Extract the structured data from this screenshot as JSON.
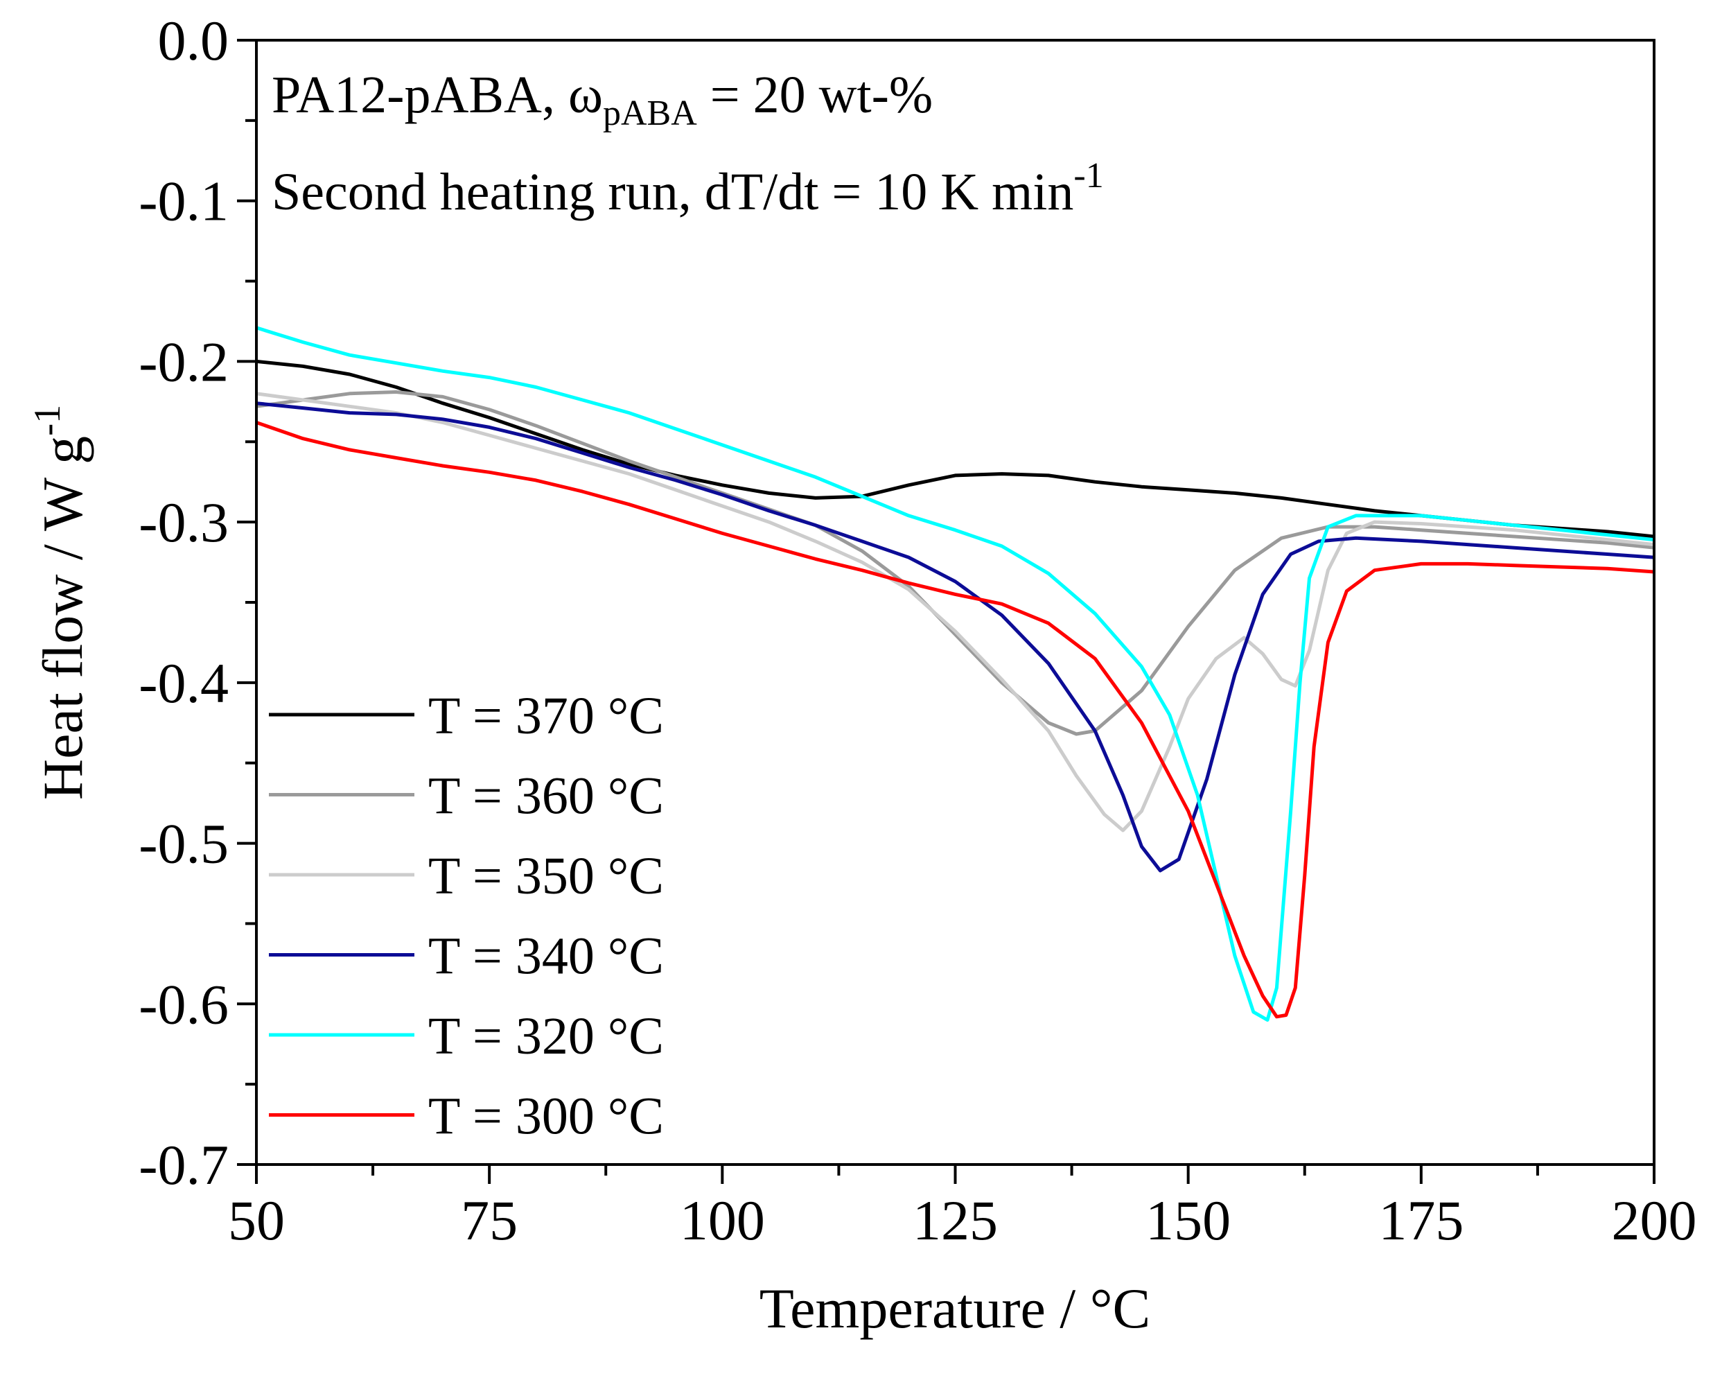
{
  "chart_data": {
    "type": "line",
    "title": "",
    "annotations": [
      {
        "main": "PA12-pABA, ω",
        "sub": "pABA",
        "rest": " = 20 wt-%"
      },
      {
        "main": "Second heating run, dT/dt = 10 K min",
        "sup": "-1"
      }
    ],
    "xlabel": "Temperature / °C",
    "ylabel": {
      "main": "Heat flow / W g",
      "sup": "-1"
    },
    "xlim": [
      50,
      200
    ],
    "ylim": [
      -0.7,
      0.0
    ],
    "xticks": [
      "50",
      "75",
      "100",
      "125",
      "150",
      "175",
      "200"
    ],
    "yticks": [
      "0.0",
      "-0.1",
      "-0.2",
      "-0.3",
      "-0.4",
      "-0.5",
      "-0.6",
      "-0.7"
    ],
    "grid": false,
    "legend_position": "lower-left",
    "series": [
      {
        "name": "T = 370 °C",
        "color": "#000000",
        "points": [
          [
            50,
            -0.2
          ],
          [
            55,
            -0.203
          ],
          [
            60,
            -0.208
          ],
          [
            65,
            -0.216
          ],
          [
            70,
            -0.226
          ],
          [
            75,
            -0.235
          ],
          [
            80,
            -0.245
          ],
          [
            85,
            -0.255
          ],
          [
            90,
            -0.264
          ],
          [
            95,
            -0.271
          ],
          [
            100,
            -0.277
          ],
          [
            105,
            -0.282
          ],
          [
            110,
            -0.285
          ],
          [
            115,
            -0.284
          ],
          [
            120,
            -0.277
          ],
          [
            125,
            -0.271
          ],
          [
            130,
            -0.27
          ],
          [
            135,
            -0.271
          ],
          [
            140,
            -0.275
          ],
          [
            145,
            -0.278
          ],
          [
            150,
            -0.28
          ],
          [
            155,
            -0.282
          ],
          [
            160,
            -0.285
          ],
          [
            165,
            -0.289
          ],
          [
            170,
            -0.293
          ],
          [
            175,
            -0.296
          ],
          [
            180,
            -0.299
          ],
          [
            185,
            -0.302
          ],
          [
            190,
            -0.304
          ],
          [
            195,
            -0.306
          ],
          [
            200,
            -0.309
          ]
        ]
      },
      {
        "name": "T = 360 °C",
        "color": "#9a9a9a",
        "points": [
          [
            50,
            -0.228
          ],
          [
            55,
            -0.224
          ],
          [
            60,
            -0.22
          ],
          [
            65,
            -0.219
          ],
          [
            70,
            -0.222
          ],
          [
            75,
            -0.23
          ],
          [
            80,
            -0.24
          ],
          [
            85,
            -0.251
          ],
          [
            90,
            -0.262
          ],
          [
            95,
            -0.272
          ],
          [
            100,
            -0.282
          ],
          [
            105,
            -0.292
          ],
          [
            110,
            -0.302
          ],
          [
            115,
            -0.318
          ],
          [
            120,
            -0.34
          ],
          [
            125,
            -0.37
          ],
          [
            130,
            -0.4
          ],
          [
            135,
            -0.425
          ],
          [
            138,
            -0.432
          ],
          [
            140,
            -0.43
          ],
          [
            145,
            -0.405
          ],
          [
            150,
            -0.365
          ],
          [
            155,
            -0.33
          ],
          [
            160,
            -0.31
          ],
          [
            165,
            -0.303
          ],
          [
            170,
            -0.303
          ],
          [
            175,
            -0.305
          ],
          [
            180,
            -0.307
          ],
          [
            185,
            -0.309
          ],
          [
            190,
            -0.311
          ],
          [
            195,
            -0.313
          ],
          [
            200,
            -0.316
          ]
        ]
      },
      {
        "name": "T = 350 °C",
        "color": "#cccccc",
        "points": [
          [
            50,
            -0.22
          ],
          [
            55,
            -0.224
          ],
          [
            60,
            -0.228
          ],
          [
            65,
            -0.232
          ],
          [
            70,
            -0.238
          ],
          [
            75,
            -0.246
          ],
          [
            80,
            -0.254
          ],
          [
            85,
            -0.262
          ],
          [
            90,
            -0.27
          ],
          [
            95,
            -0.28
          ],
          [
            100,
            -0.29
          ],
          [
            105,
            -0.3
          ],
          [
            110,
            -0.312
          ],
          [
            115,
            -0.325
          ],
          [
            120,
            -0.342
          ],
          [
            125,
            -0.368
          ],
          [
            130,
            -0.398
          ],
          [
            135,
            -0.43
          ],
          [
            138,
            -0.458
          ],
          [
            141,
            -0.482
          ],
          [
            143,
            -0.492
          ],
          [
            145,
            -0.48
          ],
          [
            148,
            -0.44
          ],
          [
            150,
            -0.41
          ],
          [
            153,
            -0.385
          ],
          [
            156,
            -0.372
          ],
          [
            158,
            -0.382
          ],
          [
            160,
            -0.398
          ],
          [
            161.5,
            -0.402
          ],
          [
            163,
            -0.38
          ],
          [
            165,
            -0.33
          ],
          [
            167,
            -0.307
          ],
          [
            170,
            -0.3
          ],
          [
            175,
            -0.301
          ],
          [
            180,
            -0.303
          ],
          [
            185,
            -0.305
          ],
          [
            190,
            -0.308
          ],
          [
            195,
            -0.311
          ],
          [
            200,
            -0.314
          ]
        ]
      },
      {
        "name": "T = 340 °C",
        "color": "#0c0c96",
        "points": [
          [
            50,
            -0.226
          ],
          [
            55,
            -0.229
          ],
          [
            60,
            -0.232
          ],
          [
            65,
            -0.233
          ],
          [
            70,
            -0.236
          ],
          [
            75,
            -0.241
          ],
          [
            80,
            -0.248
          ],
          [
            85,
            -0.257
          ],
          [
            90,
            -0.266
          ],
          [
            95,
            -0.274
          ],
          [
            100,
            -0.283
          ],
          [
            105,
            -0.293
          ],
          [
            110,
            -0.302
          ],
          [
            115,
            -0.312
          ],
          [
            120,
            -0.322
          ],
          [
            125,
            -0.337
          ],
          [
            130,
            -0.358
          ],
          [
            135,
            -0.388
          ],
          [
            140,
            -0.43
          ],
          [
            143,
            -0.47
          ],
          [
            145,
            -0.502
          ],
          [
            147,
            -0.517
          ],
          [
            149,
            -0.51
          ],
          [
            152,
            -0.46
          ],
          [
            155,
            -0.395
          ],
          [
            158,
            -0.345
          ],
          [
            161,
            -0.32
          ],
          [
            164,
            -0.312
          ],
          [
            168,
            -0.31
          ],
          [
            175,
            -0.312
          ],
          [
            180,
            -0.314
          ],
          [
            185,
            -0.316
          ],
          [
            190,
            -0.318
          ],
          [
            195,
            -0.32
          ],
          [
            200,
            -0.322
          ]
        ]
      },
      {
        "name": "T = 320 °C",
        "color": "#00ffff",
        "points": [
          [
            50,
            -0.179
          ],
          [
            55,
            -0.188
          ],
          [
            60,
            -0.196
          ],
          [
            65,
            -0.201
          ],
          [
            70,
            -0.206
          ],
          [
            75,
            -0.21
          ],
          [
            80,
            -0.216
          ],
          [
            85,
            -0.224
          ],
          [
            90,
            -0.232
          ],
          [
            95,
            -0.242
          ],
          [
            100,
            -0.252
          ],
          [
            105,
            -0.262
          ],
          [
            110,
            -0.272
          ],
          [
            115,
            -0.284
          ],
          [
            120,
            -0.296
          ],
          [
            125,
            -0.305
          ],
          [
            130,
            -0.315
          ],
          [
            135,
            -0.332
          ],
          [
            140,
            -0.357
          ],
          [
            145,
            -0.39
          ],
          [
            148,
            -0.42
          ],
          [
            151,
            -0.47
          ],
          [
            153,
            -0.52
          ],
          [
            155,
            -0.57
          ],
          [
            157,
            -0.605
          ],
          [
            158.5,
            -0.61
          ],
          [
            159.5,
            -0.59
          ],
          [
            161,
            -0.48
          ],
          [
            162,
            -0.4
          ],
          [
            163,
            -0.335
          ],
          [
            165,
            -0.303
          ],
          [
            168,
            -0.296
          ],
          [
            175,
            -0.296
          ],
          [
            180,
            -0.299
          ],
          [
            185,
            -0.302
          ],
          [
            190,
            -0.305
          ],
          [
            195,
            -0.308
          ],
          [
            200,
            -0.311
          ]
        ]
      },
      {
        "name": "T = 300 °C",
        "color": "#ff0000",
        "points": [
          [
            50,
            -0.238
          ],
          [
            55,
            -0.248
          ],
          [
            60,
            -0.255
          ],
          [
            65,
            -0.26
          ],
          [
            70,
            -0.265
          ],
          [
            75,
            -0.269
          ],
          [
            80,
            -0.274
          ],
          [
            85,
            -0.281
          ],
          [
            90,
            -0.289
          ],
          [
            95,
            -0.298
          ],
          [
            100,
            -0.307
          ],
          [
            105,
            -0.315
          ],
          [
            110,
            -0.323
          ],
          [
            115,
            -0.33
          ],
          [
            120,
            -0.338
          ],
          [
            125,
            -0.345
          ],
          [
            130,
            -0.351
          ],
          [
            135,
            -0.363
          ],
          [
            140,
            -0.385
          ],
          [
            145,
            -0.425
          ],
          [
            150,
            -0.48
          ],
          [
            153,
            -0.525
          ],
          [
            156,
            -0.57
          ],
          [
            158,
            -0.595
          ],
          [
            159.5,
            -0.608
          ],
          [
            160.5,
            -0.607
          ],
          [
            161.5,
            -0.59
          ],
          [
            162.5,
            -0.52
          ],
          [
            163.5,
            -0.44
          ],
          [
            165,
            -0.375
          ],
          [
            167,
            -0.343
          ],
          [
            170,
            -0.33
          ],
          [
            175,
            -0.326
          ],
          [
            180,
            -0.326
          ],
          [
            185,
            -0.327
          ],
          [
            190,
            -0.328
          ],
          [
            195,
            -0.329
          ],
          [
            200,
            -0.331
          ]
        ]
      }
    ]
  }
}
